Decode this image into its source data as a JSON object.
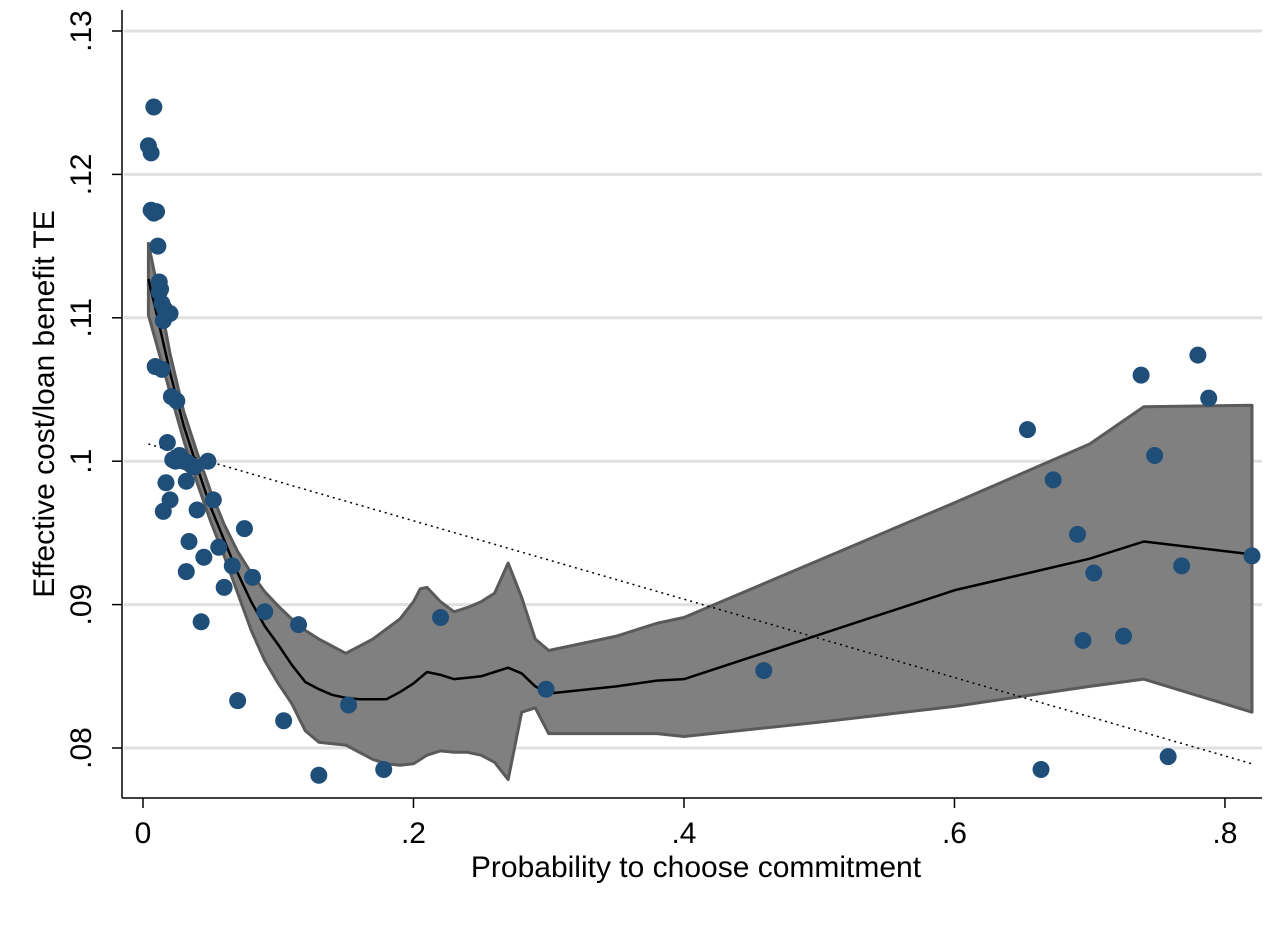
{
  "chart_data": {
    "type": "scatter",
    "title": "",
    "xlabel": "Probability to choose commitment",
    "ylabel": "Effective cost/loan benefit TE",
    "xlim": [
      0,
      0.82
    ],
    "ylim": [
      0.076,
      0.13
    ],
    "x_ticks": [
      0,
      0.2,
      0.4,
      0.6,
      0.8
    ],
    "x_tick_labels": [
      "0",
      ".2",
      ".4",
      ".6",
      ".8"
    ],
    "y_ticks": [
      0.08,
      0.09,
      0.1,
      0.11,
      0.12,
      0.13
    ],
    "y_tick_labels": [
      ".08",
      ".09",
      ".1",
      ".11",
      ".12",
      ".13"
    ],
    "grid": "horizontal",
    "legend": "none",
    "colors": {
      "points": "#1f4e79",
      "band_fill": "#808080",
      "band_edge": "#5a5a5a",
      "fit_line": "#000000",
      "linear_fit": "#000000",
      "grid": "#e0e0e0"
    },
    "series": [
      {
        "kind": "points",
        "x": [
          0.004,
          0.006,
          0.008,
          0.006,
          0.01,
          0.008,
          0.011,
          0.012,
          0.013,
          0.012,
          0.014,
          0.015,
          0.016,
          0.02,
          0.009,
          0.014,
          0.021,
          0.025,
          0.018,
          0.024,
          0.022,
          0.027,
          0.03,
          0.033,
          0.032,
          0.036,
          0.038,
          0.048,
          0.017,
          0.02,
          0.015,
          0.04,
          0.052,
          0.034,
          0.045,
          0.056,
          0.032,
          0.043,
          0.06,
          0.066,
          0.075,
          0.081,
          0.07,
          0.09,
          0.104,
          0.115,
          0.13,
          0.152,
          0.178,
          0.22,
          0.298,
          0.459,
          0.654,
          0.664,
          0.673,
          0.691,
          0.695,
          0.703,
          0.725,
          0.738,
          0.748,
          0.758,
          0.768,
          0.78,
          0.788,
          0.82
        ],
        "y": [
          0.122,
          0.1215,
          0.1247,
          0.1175,
          0.1174,
          0.1173,
          0.115,
          0.1125,
          0.112,
          0.1118,
          0.111,
          0.1098,
          0.1106,
          0.1103,
          0.1066,
          0.1064,
          0.1045,
          0.1042,
          0.1013,
          0.1,
          0.1001,
          0.1004,
          0.1,
          0.0999,
          0.0986,
          0.0997,
          0.0996,
          0.1,
          0.0985,
          0.0973,
          0.0965,
          0.0966,
          0.0973,
          0.0944,
          0.0933,
          0.094,
          0.0923,
          0.0888,
          0.0912,
          0.0927,
          0.0953,
          0.0919,
          0.0833,
          0.0895,
          0.0819,
          0.0886,
          0.0781,
          0.083,
          0.0785,
          0.0891,
          0.0841,
          0.0854,
          0.1022,
          0.0785,
          0.0987,
          0.0949,
          0.0875,
          0.0922,
          0.0878,
          0.106,
          0.1004,
          0.0794,
          0.0927,
          0.1074,
          0.1044,
          0.0934
        ]
      },
      {
        "kind": "band",
        "x": [
          0.004,
          0.012,
          0.02,
          0.03,
          0.04,
          0.05,
          0.06,
          0.07,
          0.08,
          0.09,
          0.1,
          0.11,
          0.12,
          0.13,
          0.14,
          0.15,
          0.16,
          0.17,
          0.18,
          0.19,
          0.2,
          0.205,
          0.21,
          0.22,
          0.23,
          0.24,
          0.25,
          0.26,
          0.27,
          0.28,
          0.29,
          0.3,
          0.35,
          0.38,
          0.4,
          0.5,
          0.6,
          0.7,
          0.74,
          0.82
        ],
        "upper": [
          0.1152,
          0.1115,
          0.1075,
          0.1035,
          0.1006,
          0.0979,
          0.0956,
          0.0937,
          0.0922,
          0.0909,
          0.0899,
          0.089,
          0.0882,
          0.0876,
          0.0871,
          0.0866,
          0.0871,
          0.0876,
          0.0883,
          0.089,
          0.0902,
          0.0911,
          0.0912,
          0.0902,
          0.0895,
          0.0898,
          0.0902,
          0.0908,
          0.0929,
          0.0905,
          0.0876,
          0.0868,
          0.0878,
          0.0887,
          0.0891,
          0.0931,
          0.0971,
          0.1012,
          0.1038,
          0.1039
        ],
        "lower": [
          0.1102,
          0.1075,
          0.1048,
          0.1015,
          0.0985,
          0.0958,
          0.0934,
          0.0908,
          0.0882,
          0.0861,
          0.0845,
          0.0831,
          0.0812,
          0.0804,
          0.0803,
          0.0802,
          0.0797,
          0.0792,
          0.0789,
          0.0788,
          0.0789,
          0.0792,
          0.0795,
          0.0798,
          0.0797,
          0.0797,
          0.0795,
          0.079,
          0.0778,
          0.0825,
          0.0828,
          0.081,
          0.081,
          0.081,
          0.0808,
          0.0818,
          0.0829,
          0.0843,
          0.0848,
          0.0825
        ]
      },
      {
        "kind": "local-fit",
        "x": [
          0.004,
          0.012,
          0.02,
          0.03,
          0.04,
          0.05,
          0.06,
          0.07,
          0.08,
          0.09,
          0.1,
          0.11,
          0.12,
          0.13,
          0.14,
          0.15,
          0.16,
          0.17,
          0.18,
          0.19,
          0.2,
          0.21,
          0.22,
          0.23,
          0.24,
          0.25,
          0.26,
          0.27,
          0.28,
          0.29,
          0.3,
          0.35,
          0.38,
          0.4,
          0.5,
          0.6,
          0.7,
          0.74,
          0.82
        ],
        "y": [
          0.1127,
          0.1095,
          0.1062,
          0.1025,
          0.0996,
          0.0968,
          0.0945,
          0.0922,
          0.0902,
          0.0885,
          0.0872,
          0.0858,
          0.0846,
          0.0841,
          0.0837,
          0.0835,
          0.0834,
          0.0834,
          0.0834,
          0.0839,
          0.0845,
          0.0853,
          0.0851,
          0.0848,
          0.0849,
          0.085,
          0.0853,
          0.0856,
          0.0852,
          0.0843,
          0.0838,
          0.0843,
          0.0847,
          0.0848,
          0.0879,
          0.091,
          0.0932,
          0.0944,
          0.0935
        ]
      },
      {
        "kind": "linear-fit",
        "x": [
          0.004,
          0.82
        ],
        "y": [
          0.1012,
          0.0789
        ]
      }
    ]
  }
}
